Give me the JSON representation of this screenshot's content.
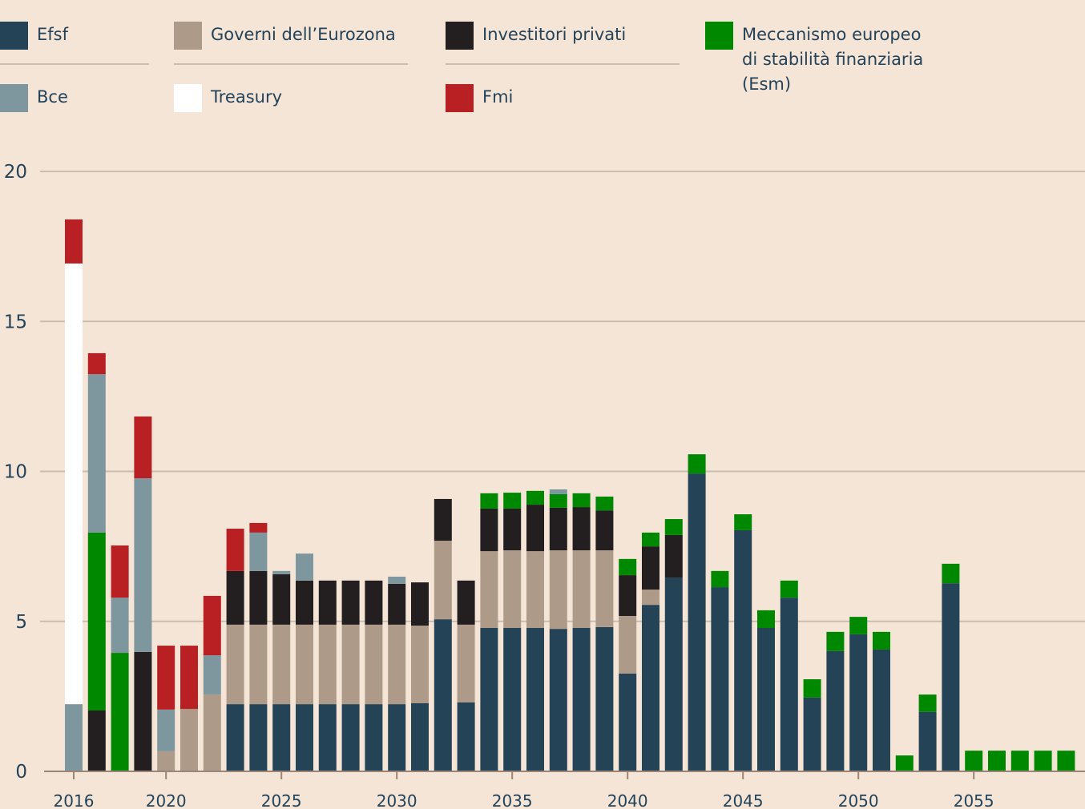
{
  "chart_data": {
    "type": "bar",
    "stacked": true,
    "title": "",
    "xlabel": "",
    "ylabel": "",
    "ylim": [
      0,
      20
    ],
    "yticks": [
      0,
      5,
      10,
      15,
      20
    ],
    "xticks": [
      2016,
      2020,
      2025,
      2030,
      2035,
      2040,
      2045,
      2050,
      2055
    ],
    "grid": true,
    "legend_position": "top",
    "categories": [
      2016,
      2017,
      2018,
      2019,
      2020,
      2021,
      2022,
      2023,
      2024,
      2025,
      2026,
      2027,
      2028,
      2029,
      2030,
      2031,
      2032,
      2033,
      2034,
      2035,
      2036,
      2037,
      2038,
      2039,
      2040,
      2041,
      2042,
      2043,
      2044,
      2045,
      2046,
      2047,
      2048,
      2049,
      2050,
      2051,
      2052,
      2053,
      2054,
      2055,
      2056,
      2057,
      2058,
      2059
    ],
    "series": [
      {
        "key": "efsf",
        "name": "Efsf",
        "color": "#244357",
        "values": [
          0,
          0,
          0,
          0,
          0,
          0,
          0,
          2.24,
          2.24,
          2.24,
          2.24,
          2.24,
          2.24,
          2.24,
          2.24,
          2.27,
          5.07,
          2.3,
          4.78,
          4.78,
          4.78,
          4.75,
          4.78,
          4.81,
          3.26,
          5.55,
          6.46,
          9.93,
          6.14,
          8.04,
          4.78,
          5.79,
          2.46,
          4.01,
          4.57,
          4.06,
          0,
          1.98,
          6.27,
          0,
          0,
          0,
          0,
          0
        ]
      },
      {
        "key": "governi",
        "name": "Governi dell’Eurozona",
        "color": "#ae9a89",
        "values": [
          0,
          0,
          0,
          0,
          0.67,
          2.08,
          2.56,
          2.65,
          2.65,
          2.65,
          2.65,
          2.65,
          2.65,
          2.65,
          2.65,
          2.59,
          2.62,
          2.59,
          2.56,
          2.59,
          2.56,
          2.62,
          2.59,
          2.56,
          1.92,
          0.51,
          0,
          0,
          0,
          0,
          0,
          0,
          0,
          0,
          0,
          0,
          0,
          0,
          0,
          0,
          0,
          0,
          0,
          0
        ]
      },
      {
        "key": "investitori",
        "name": "Investitori privati",
        "color": "#231f20",
        "values": [
          0,
          2.03,
          0,
          3.98,
          0,
          0,
          0,
          1.79,
          1.79,
          1.68,
          1.47,
          1.47,
          1.47,
          1.47,
          1.36,
          1.44,
          1.39,
          1.47,
          1.42,
          1.39,
          1.55,
          1.42,
          1.44,
          1.33,
          1.36,
          1.44,
          1.42,
          0,
          0,
          0,
          0,
          0,
          0,
          0,
          0,
          0,
          0,
          0,
          0,
          0,
          0,
          0,
          0,
          0
        ]
      },
      {
        "key": "esm",
        "name": "Meccanismo europeo\ndi stabilità finanziaria\n(Esm)",
        "color": "#008800",
        "values": [
          0,
          5.93,
          3.95,
          0,
          0,
          0,
          0,
          0,
          0,
          0,
          0,
          0,
          0,
          0,
          0,
          0,
          0,
          0,
          0.51,
          0.53,
          0.46,
          0.45,
          0.46,
          0.46,
          0.54,
          0.46,
          0.53,
          0.64,
          0.54,
          0.53,
          0.59,
          0.57,
          0.61,
          0.64,
          0.58,
          0.59,
          0.53,
          0.58,
          0.65,
          0.69,
          0.69,
          0.69,
          0.69,
          0.69
        ]
      },
      {
        "key": "bce",
        "name": "Bce",
        "color": "#7e979f",
        "values": [
          2.24,
          5.28,
          1.84,
          5.79,
          1.39,
          0,
          1.31,
          0,
          1.28,
          0.11,
          0.9,
          0,
          0,
          0,
          0.24,
          0,
          0,
          0,
          0,
          0,
          0,
          0.16,
          0,
          0,
          0,
          0,
          0,
          0,
          0,
          0,
          0,
          0,
          0,
          0,
          0,
          0,
          0,
          0,
          0,
          0,
          0,
          0,
          0,
          0
        ]
      },
      {
        "key": "treasury",
        "name": "Treasury",
        "color": "#ffffff",
        "values": [
          14.69,
          0,
          0,
          0,
          0,
          0,
          0,
          0,
          0,
          0,
          0,
          0,
          0,
          0,
          0,
          0,
          0,
          0,
          0,
          0,
          0,
          0,
          0,
          0,
          0,
          0,
          0,
          0,
          0,
          0,
          0,
          0,
          0,
          0,
          0,
          0,
          0,
          0,
          0,
          0,
          0,
          0,
          0,
          0
        ]
      },
      {
        "key": "fmi",
        "name": "Fmi",
        "color": "#b82024",
        "values": [
          1.47,
          0.7,
          1.74,
          2.06,
          2.13,
          2.11,
          1.98,
          1.41,
          0.32,
          0,
          0,
          0,
          0,
          0,
          0,
          0,
          0,
          0,
          0,
          0,
          0,
          0,
          0,
          0,
          0,
          0,
          0,
          0,
          0,
          0,
          0,
          0,
          0,
          0,
          0,
          0,
          0,
          0,
          0,
          0,
          0,
          0,
          0,
          0
        ]
      }
    ]
  },
  "legend": {
    "items": [
      {
        "label": "Efsf",
        "color": "#244357"
      },
      {
        "label": "Governi dell’Eurozona",
        "color": "#ae9a89"
      },
      {
        "label": "Investitori privati",
        "color": "#231f20"
      },
      {
        "label": "Meccanismo europeo\ndi stabilità finanziaria\n(Esm)",
        "color": "#008800"
      },
      {
        "label": "Bce",
        "color": "#7e979f"
      },
      {
        "label": "Treasury",
        "color": "#ffffff"
      },
      {
        "label": "Fmi",
        "color": "#b82024"
      }
    ]
  },
  "colors": {
    "background": "#f4e5d6",
    "text": "#24435a",
    "gridline": "#c9bdb2",
    "axis": "#9a8678"
  }
}
